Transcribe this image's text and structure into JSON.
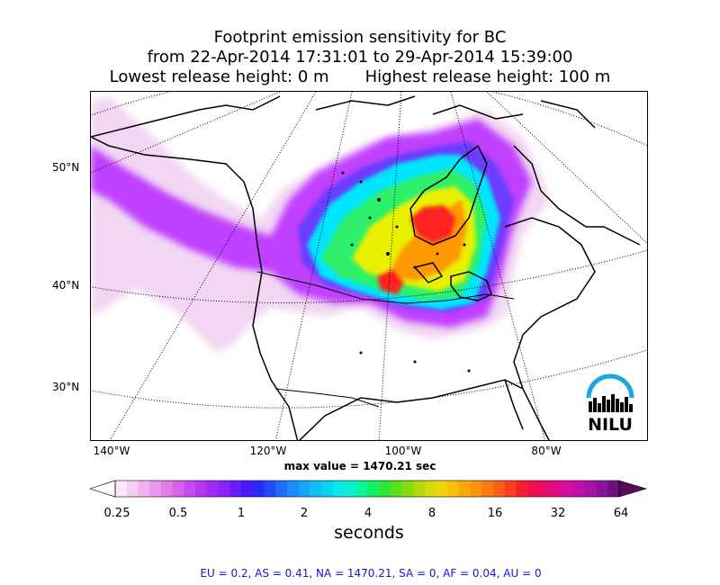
{
  "title": {
    "line1": "Footprint emission sensitivity for BC",
    "line2": "from 22-Apr-2014 17:31:01 to 29-Apr-2014 15:39:00",
    "line3": "Lowest release height: 0 m       Highest release height: 100 m"
  },
  "map": {
    "projection": "polar stereographic (North America)",
    "lat_labels": [
      "50°N",
      "40°N",
      "30°N"
    ],
    "lon_labels": [
      "140°W",
      "120°W",
      "100°W",
      "80°W"
    ],
    "max_value_text": "max value = 1470.21 sec",
    "logo_text": "NILU",
    "plume_colors": {
      "lowest": "#f2d7f2",
      "low": "#bf40ff",
      "mid_low": "#6a3cff",
      "mid": "#00e5ff",
      "mid_high": "#2ef06a",
      "high": "#e8f000",
      "higher": "#ff9900",
      "peak": "#ff2020"
    }
  },
  "colorbar": {
    "tick_labels": [
      "0.25",
      "0.5",
      "1",
      "2",
      "4",
      "8",
      "16",
      "32",
      "64"
    ],
    "units": "seconds",
    "colors": [
      "#fde7fd",
      "#f7cdf7",
      "#f0b2f0",
      "#e899ee",
      "#e07ee9",
      "#d662ee",
      "#c84af1",
      "#b537f4",
      "#9e2cf6",
      "#8a24f8",
      "#6a1cfa",
      "#4918fb",
      "#2a2afc",
      "#1f4bfd",
      "#1e6dfd",
      "#1c8dfd",
      "#15a6fb",
      "#0fbef8",
      "#0bd2f3",
      "#0ae6ea",
      "#0af0cf",
      "#0af49a",
      "#10f066",
      "#2ee63a",
      "#58e01c",
      "#86da12",
      "#b2d80e",
      "#d8d80a",
      "#f0d40a",
      "#f8be0a",
      "#fca80c",
      "#fd9310",
      "#fd7a14",
      "#fc5e18",
      "#fa401e",
      "#f71e32",
      "#f0104e",
      "#e80c6a",
      "#e00c86",
      "#d30e9c",
      "#c010a8",
      "#a812a8",
      "#8c129e",
      "#6e1080"
    ],
    "under_color": "#ffffff",
    "over_color": "#5a0a5a"
  },
  "region_stats": "EU = 0.2,  AS = 0.41,  NA = 1470.21,  SA = 0,  AF = 0.04,  AU = 0",
  "style": {
    "stats_color": "#1414dc",
    "logo_color": "#1aa7e5"
  }
}
